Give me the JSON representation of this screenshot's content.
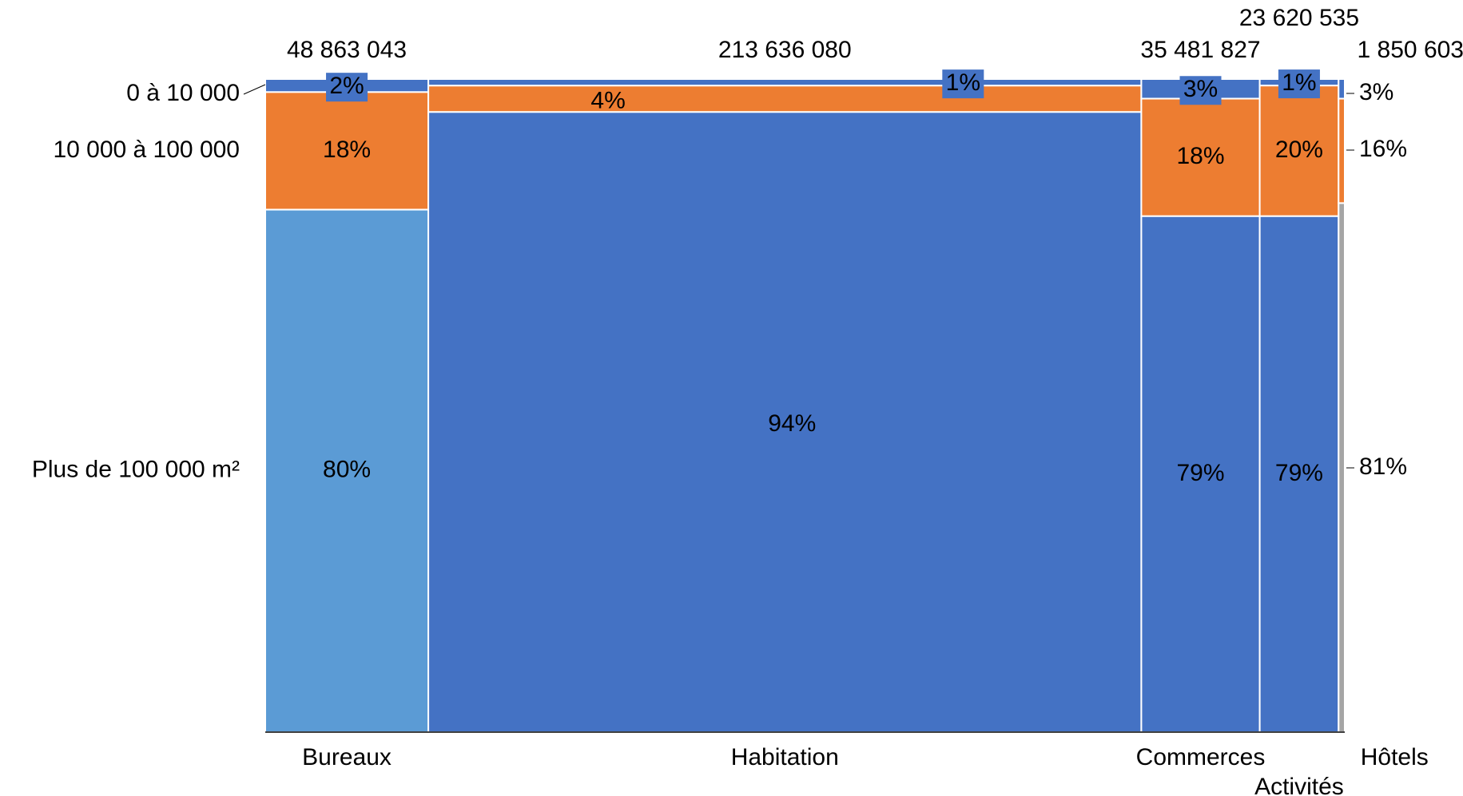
{
  "chart_data": {
    "type": "mekko",
    "title": "",
    "categories": [
      {
        "name": "Bureaux",
        "total": 48863043,
        "total_label": "48 863 043",
        "shares": [
          2,
          18,
          80
        ],
        "share_labels": [
          "2%",
          "18%",
          "80%"
        ]
      },
      {
        "name": "Habitation",
        "total": 213636080,
        "total_label": "213 636 080",
        "shares": [
          1,
          4,
          94
        ],
        "share_labels": [
          "1%",
          "4%",
          "94%"
        ]
      },
      {
        "name": "Commerces",
        "total": 35481827,
        "total_label": "35 481 827",
        "shares": [
          3,
          18,
          79
        ],
        "share_labels": [
          "3%",
          "18%",
          "79%"
        ]
      },
      {
        "name": "Activités",
        "total": 23620535,
        "total_label": "23 620 535",
        "shares": [
          1,
          20,
          79
        ],
        "share_labels": [
          "1%",
          "20%",
          "79%"
        ]
      },
      {
        "name": "Hôtels",
        "total": 1850603,
        "total_label": "1 850 603",
        "shares": [
          3,
          16,
          81
        ],
        "share_labels": [
          "3%",
          "16%",
          "81%"
        ]
      }
    ],
    "segments": [
      "0 à 10 000",
      "10 000 à 100 000",
      "Plus de 100 000 m²"
    ],
    "colors": {
      "small": "#4472C4",
      "medium": "#ED7D31",
      "large": "#4472C4",
      "large_first": "#5B9BD5",
      "large_last": "#A5A5A5"
    }
  }
}
